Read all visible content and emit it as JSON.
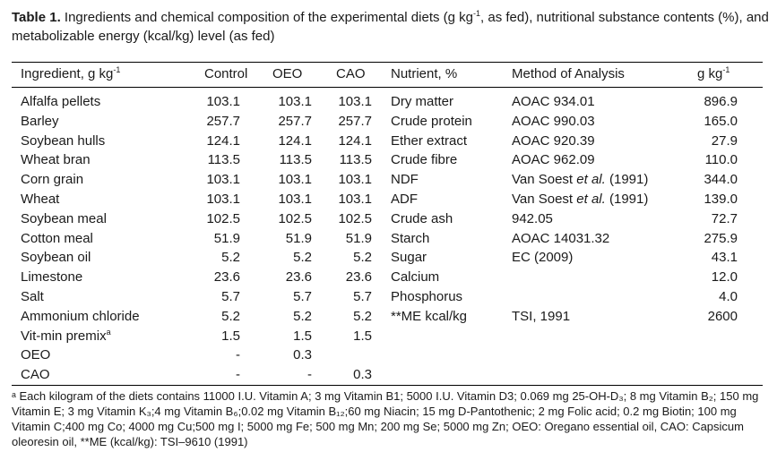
{
  "caption": {
    "label": "Table 1.",
    "text_pre": " Ingredients and chemical composition of the experimental diets (g kg",
    "sup": "-1",
    "text_post": ", as fed), nutritional substance contents (%), and metabolizable energy (kcal/kg) level (as fed)"
  },
  "headers": {
    "ingredient": "Ingredient, g kg",
    "ingredient_sup": "-1",
    "control": "Control",
    "oeo": "OEO",
    "cao": "CAO",
    "nutrient": "Nutrient, %",
    "method": "Method of Analysis",
    "gkg": "g kg",
    "gkg_sup": "-1"
  },
  "ingredients": [
    {
      "name": "Alfalfa pellets",
      "control": "103.1",
      "oeo": "103.1",
      "cao": "103.1"
    },
    {
      "name": "Barley",
      "control": "257.7",
      "oeo": "257.7",
      "cao": "257.7"
    },
    {
      "name": "Soybean hulls",
      "control": "124.1",
      "oeo": "124.1",
      "cao": "124.1"
    },
    {
      "name": "Wheat bran",
      "control": "113.5",
      "oeo": "113.5",
      "cao": "113.5"
    },
    {
      "name": "Corn grain",
      "control": "103.1",
      "oeo": "103.1",
      "cao": "103.1"
    },
    {
      "name": "Wheat",
      "control": "103.1",
      "oeo": "103.1",
      "cao": "103.1"
    },
    {
      "name": "Soybean meal",
      "control": "102.5",
      "oeo": "102.5",
      "cao": "102.5"
    },
    {
      "name": "Cotton meal",
      "control": "51.9",
      "oeo": "51.9",
      "cao": "51.9"
    },
    {
      "name": "Soybean oil",
      "control": "5.2",
      "oeo": "5.2",
      "cao": "5.2"
    },
    {
      "name": "Limestone",
      "control": "23.6",
      "oeo": "23.6",
      "cao": "23.6"
    },
    {
      "name": "Salt",
      "control": "5.7",
      "oeo": "5.7",
      "cao": "5.7"
    },
    {
      "name": "Ammonium chloride",
      "control": "5.2",
      "oeo": "5.2",
      "cao": "5.2"
    },
    {
      "name": "Vit-min premix",
      "name_sup": "a",
      "control": "1.5",
      "oeo": "1.5",
      "cao": "1.5"
    },
    {
      "name": "OEO",
      "control": "-",
      "oeo": "0.3",
      "cao": ""
    },
    {
      "name": "CAO",
      "control": "-",
      "oeo": "-",
      "cao": "0.3"
    }
  ],
  "nutrients": [
    {
      "name": "Dry matter",
      "method": "AOAC 934.01",
      "value": "896.9"
    },
    {
      "name": "Crude protein",
      "method": "AOAC 990.03",
      "value": "165.0"
    },
    {
      "name": "Ether extract",
      "method": "AOAC 920.39",
      "value": "27.9"
    },
    {
      "name": "Crude fibre",
      "method": "AOAC 962.09",
      "value": "110.0"
    },
    {
      "name": "NDF",
      "method": "Van Soest et al. (1991)",
      "value": "344.0"
    },
    {
      "name": "ADF",
      "method": "Van Soest et al. (1991)",
      "value": "139.0"
    },
    {
      "name": "Crude ash",
      "method": "942.05",
      "value": "72.7"
    },
    {
      "name": "Starch",
      "method": "AOAC 14031.32",
      "value": "275.9"
    },
    {
      "name": "Sugar",
      "method": "EC (2009)",
      "value": "43.1"
    },
    {
      "name": "Calcium",
      "method": "",
      "value": "12.0"
    },
    {
      "name": "Phosphorus",
      "method": "",
      "value": "4.0"
    },
    {
      "name": "**ME kcal/kg",
      "method": "TSI, 1991",
      "value": "2600"
    }
  ],
  "footnote": "ᵃ Each kilogram of the diets contains 11000 I.U. Vitamin A; 3 mg Vitamin B1; 5000 I.U. Vitamin D3; 0.069 mg 25-OH-D₃; 8 mg Vitamin B₂; 150 mg Vitamin E; 3 mg Vitamin K₃;4 mg Vitamin B₆;0.02 mg Vitamin B₁₂;60 mg Niacin; 15 mg D-Pantothenic; 2 mg Folic acid; 0.2 mg Biotin; 100 mg Vitamin C;400 mg Co; 4000 mg Cu;500 mg I; 5000 mg Fe; 500 mg Mn; 200 mg Se; 5000 mg Zn; OEO: Oregano essential oil, CAO: Capsicum oleoresin oil, **ME (kcal/kg): TSI–9610 (1991)"
}
